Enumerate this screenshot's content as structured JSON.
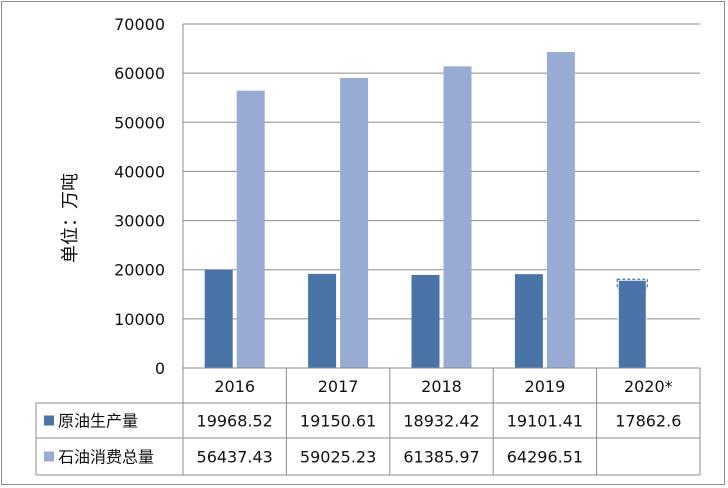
{
  "chart_data": {
    "type": "bar",
    "ylabel": "单位：万吨",
    "ylim": [
      0,
      70000
    ],
    "yticks": [
      "0",
      "10000",
      "20000",
      "30000",
      "40000",
      "50000",
      "60000",
      "70000"
    ],
    "categories": [
      "2016",
      "2017",
      "2018",
      "2019",
      "2020*"
    ],
    "series": [
      {
        "name": "原油生产量",
        "color": "#4a74a8",
        "values": [
          19968.52,
          19150.61,
          18932.42,
          19101.41,
          17862.6
        ],
        "labels": [
          "19968.52",
          "19150.61",
          "18932.42",
          "19101.41",
          "17862.6"
        ]
      },
      {
        "name": "石油消费总量",
        "color": "#98abd2",
        "values": [
          56437.43,
          59025.23,
          61385.97,
          64296.51,
          null
        ],
        "labels": [
          "56437.43",
          "59025.23",
          "61385.97",
          "64296.51",
          ""
        ]
      }
    ],
    "grid": true,
    "legend": "data-table"
  }
}
